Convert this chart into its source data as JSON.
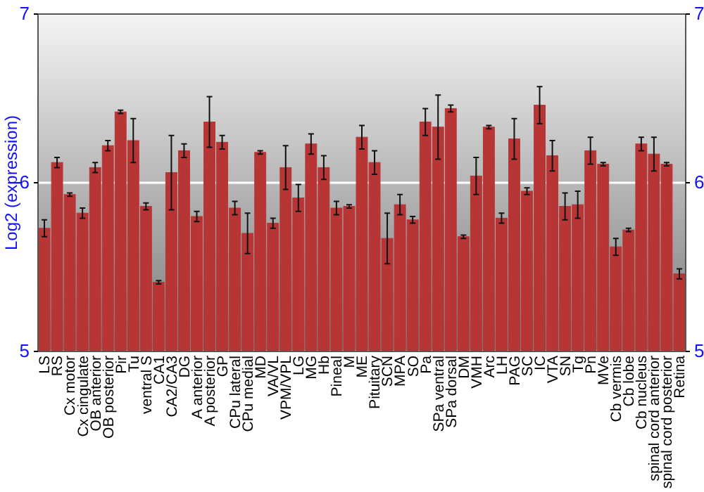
{
  "chart_data": {
    "type": "bar",
    "ylabel": "Log2 (expression)",
    "categories": [
      "LS",
      "RS",
      "Cx motor",
      "Cx cingulate",
      "OB anterior",
      "OB posterior",
      "Pir",
      "Tu",
      "ventral S",
      "CA1",
      "CA2/CA3",
      "DG",
      "A anterior",
      "A posterior",
      "GP",
      "CPu lateral",
      "CPu medial",
      "MD",
      "VA/VL",
      "VPM/VPL",
      "LG",
      "MG",
      "Hb",
      "Pineal",
      "M",
      "ME",
      "Pituitary",
      "SCN",
      "MPA",
      "SO",
      "Pa",
      "SPa ventral",
      "SPa dorsal",
      "DM",
      "VMH",
      "Arc",
      "LH",
      "PAG",
      "SC",
      "IC",
      "VTA",
      "SN",
      "Tg",
      "Pn",
      "MVe",
      "Cb vermis",
      "Cb lobe",
      "Cb nucleus",
      "spinal cord anterior",
      "spinal cord posterior",
      "Retina"
    ],
    "values": [
      5.73,
      6.12,
      5.93,
      5.82,
      6.09,
      6.22,
      6.42,
      6.25,
      5.86,
      5.41,
      6.06,
      6.19,
      5.8,
      6.36,
      6.24,
      5.85,
      5.7,
      6.18,
      5.76,
      6.09,
      5.91,
      6.23,
      6.09,
      5.85,
      5.86,
      6.27,
      6.12,
      5.67,
      5.87,
      5.78,
      6.36,
      6.33,
      6.44,
      5.68,
      6.04,
      6.33,
      5.79,
      6.26,
      5.95,
      6.46,
      6.16,
      5.86,
      5.87,
      6.19,
      6.11,
      5.62,
      5.72,
      6.23,
      6.17,
      6.11,
      5.46
    ],
    "errors": [
      0.05,
      0.03,
      0.01,
      0.03,
      0.03,
      0.03,
      0.01,
      0.13,
      0.02,
      0.01,
      0.22,
      0.04,
      0.03,
      0.15,
      0.04,
      0.04,
      0.12,
      0.01,
      0.03,
      0.13,
      0.08,
      0.06,
      0.07,
      0.04,
      0.01,
      0.07,
      0.07,
      0.15,
      0.06,
      0.02,
      0.08,
      0.19,
      0.02,
      0.01,
      0.11,
      0.01,
      0.03,
      0.12,
      0.02,
      0.11,
      0.09,
      0.08,
      0.08,
      0.08,
      0.01,
      0.05,
      0.01,
      0.04,
      0.1,
      0.01,
      0.03
    ],
    "color": "#b83535",
    "ylim": [
      5,
      7
    ],
    "yticks": [
      5,
      6,
      7
    ],
    "y2lim": [
      5,
      7
    ],
    "y2ticks": [
      5,
      6,
      7
    ],
    "grid": "y"
  }
}
